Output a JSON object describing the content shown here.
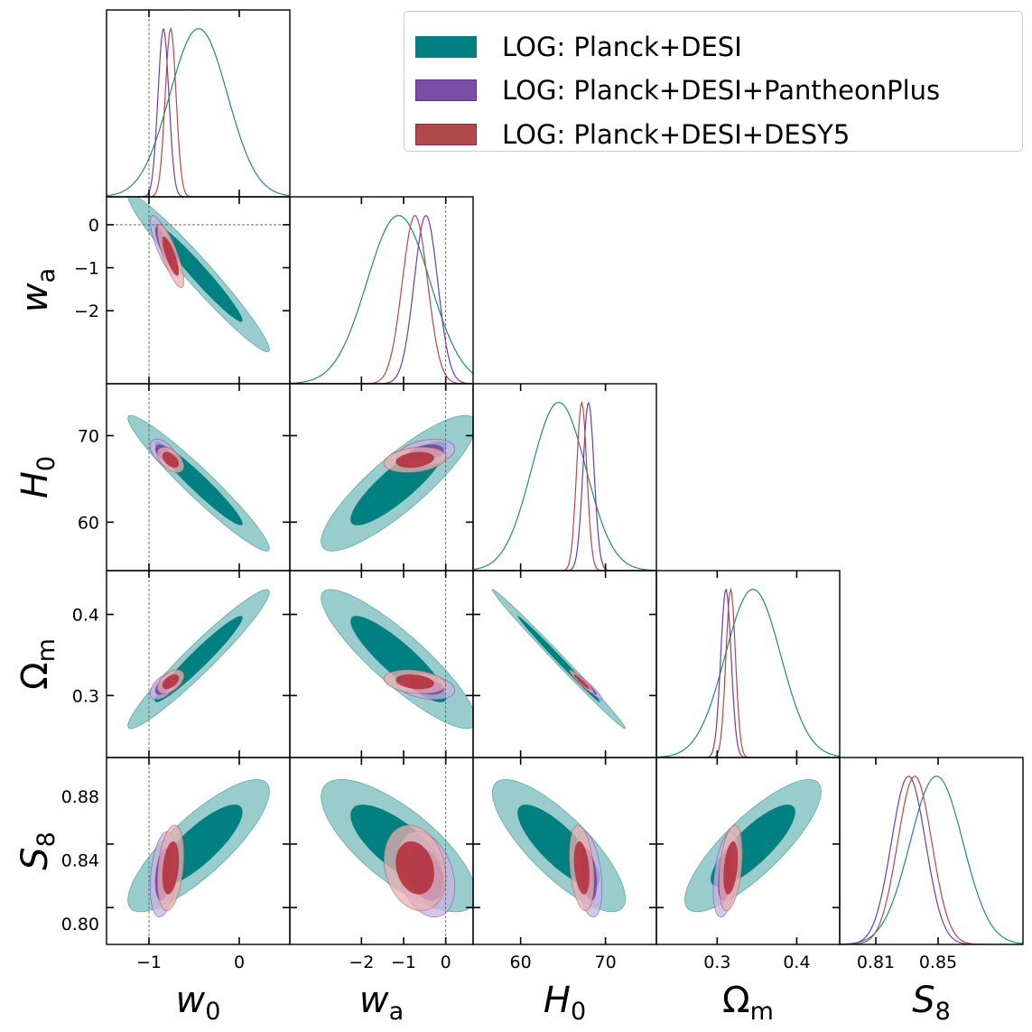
{
  "chart_data": {
    "type": "triangle-corner-plot",
    "title": "",
    "parameters": [
      {
        "key": "w0",
        "label": "w",
        "sub": "0",
        "italic": true,
        "range": [
          -1.47,
          0.56
        ],
        "ticks": [
          -1,
          0
        ],
        "tick_labels": [
          "−1",
          "0"
        ],
        "reference": -1
      },
      {
        "key": "wa",
        "label": "w",
        "sub": "a",
        "italic": true,
        "range": [
          -3.7,
          0.65
        ],
        "ticks": [
          -2,
          -1,
          0
        ],
        "tick_labels": [
          "−2",
          "−1",
          "0"
        ],
        "reference": 0
      },
      {
        "key": "H0",
        "label": "H",
        "sub": "0",
        "italic": true,
        "range": [
          54.4,
          76.0
        ],
        "ticks": [
          60,
          70
        ],
        "tick_labels": [
          "60",
          "70"
        ],
        "reference": null
      },
      {
        "key": "Om",
        "label": "Ω",
        "sub": "m",
        "italic": false,
        "range": [
          0.2236,
          0.454
        ],
        "ticks": [
          0.3,
          0.4
        ],
        "tick_labels": [
          "0.3",
          "0.4"
        ],
        "reference": null
      },
      {
        "key": "S8",
        "label": "S",
        "sub": "8",
        "italic": true,
        "range": [
          0.7868,
          0.9045
        ],
        "ticks": [
          0.81,
          0.85
        ],
        "tick_labels": [
          "0.81",
          "0.85"
        ],
        "reference": null
      }
    ],
    "row_tick_labels": {
      "wa": {
        "ticks": [
          0,
          -1,
          -2
        ],
        "labels": [
          "0",
          "−1",
          "−2"
        ]
      },
      "H0": {
        "ticks": [
          70,
          60
        ],
        "labels": [
          "70",
          "60"
        ]
      },
      "Om": {
        "ticks": [
          0.4,
          0.3
        ],
        "labels": [
          "0.4",
          "0.3"
        ]
      },
      "S8": {
        "ticks": [
          0.88,
          0.84,
          0.8
        ],
        "labels": [
          "0.88",
          "0.84",
          "0.80"
        ]
      }
    },
    "series": [
      {
        "name": "LOG: Planck+DESI",
        "color": "#008080",
        "fill_inner": "#008080",
        "fill_outer": "#99cccc",
        "line": "#1f8a7a",
        "means": {
          "w0": -0.45,
          "wa": -1.12,
          "H0": 64.5,
          "Om": 0.345,
          "S8": 0.849
        },
        "sigmas": {
          "w0": 0.32,
          "wa": 0.75,
          "H0": 3.2,
          "Om": 0.035,
          "S8": 0.017
        },
        "correlations": {
          "w0-wa": -0.97,
          "w0-H0": -0.96,
          "w0-Om": 0.96,
          "w0-S8": 0.82,
          "wa-H0": 0.86,
          "wa-Om": -0.88,
          "wa-S8": -0.74,
          "H0-Om": -0.995,
          "H0-S8": -0.8,
          "Om-S8": 0.82
        }
      },
      {
        "name": "LOG: Planck+DESI+PantheonPlus",
        "color": "#7b4ea8",
        "fill_inner": "#6a3ea8",
        "fill_outer": "#c8b3e2",
        "line": "#6a3ea8",
        "means": {
          "w0": -0.84,
          "wa": -0.47,
          "H0": 68.0,
          "Om": 0.311,
          "S8": 0.831
        },
        "sigmas": {
          "w0": 0.06,
          "wa": 0.28,
          "H0": 0.65,
          "Om": 0.0065,
          "S8": 0.011
        },
        "correlations": {
          "w0-wa": -0.8,
          "w0-H0": -0.5,
          "w0-Om": 0.5,
          "w0-S8": 0.3,
          "wa-H0": 0.3,
          "wa-Om": -0.3,
          "wa-S8": -0.3,
          "H0-Om": -0.95,
          "H0-S8": -0.35,
          "Om-S8": 0.4
        }
      },
      {
        "name": "LOG: Planck+DESI+DESY5",
        "color": "#b04a4a",
        "fill_inner": "#b22a36",
        "fill_outer": "#e8b0b0",
        "line": "#b04a4a",
        "means": {
          "w0": -0.76,
          "wa": -0.73,
          "H0": 67.2,
          "Om": 0.317,
          "S8": 0.835
        },
        "sigmas": {
          "w0": 0.06,
          "wa": 0.3,
          "H0": 0.6,
          "Om": 0.006,
          "S8": 0.011
        },
        "correlations": {
          "w0-wa": -0.8,
          "w0-H0": -0.5,
          "w0-Om": 0.5,
          "w0-S8": 0.3,
          "wa-H0": 0.25,
          "wa-Om": -0.25,
          "wa-S8": -0.2,
          "H0-Om": -0.95,
          "H0-S8": -0.3,
          "Om-S8": 0.35
        }
      }
    ],
    "contour_levels": [
      "68%",
      "95%"
    ],
    "legend_position": "top-right",
    "grid": false
  },
  "legend": {
    "items": [
      {
        "label": "LOG: Planck+DESI",
        "color": "#008080"
      },
      {
        "label": "LOG: Planck+DESI+PantheonPlus",
        "color": "#7b4ea8"
      },
      {
        "label": "LOG: Planck+DESI+DESY5",
        "color": "#b04a4a"
      }
    ]
  }
}
